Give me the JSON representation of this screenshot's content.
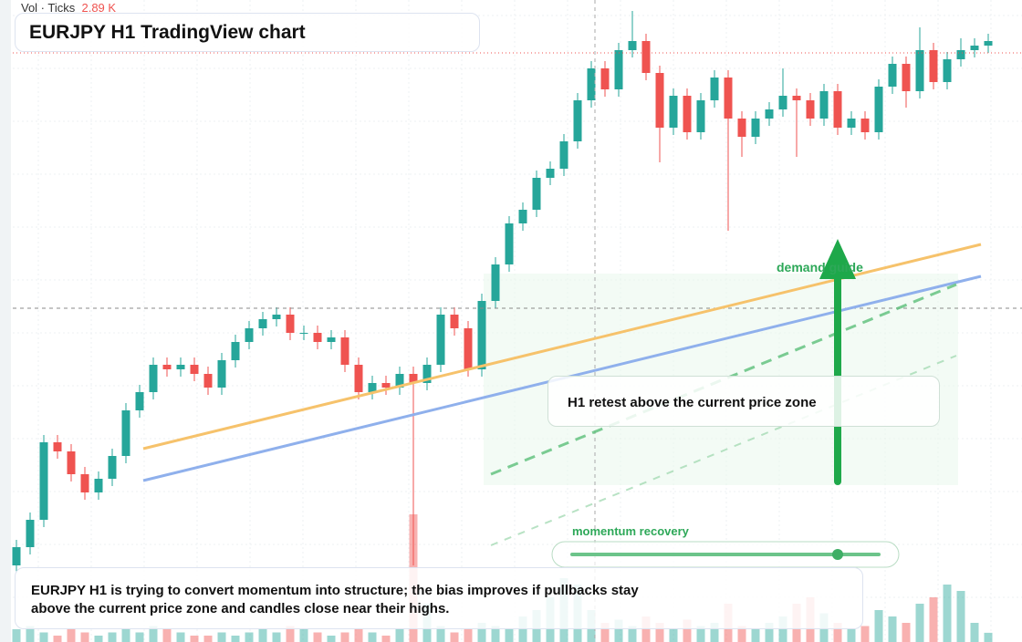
{
  "chart_data": {
    "type": "candlestick",
    "title": "EURJPY H1 TradingView chart",
    "legend_prefix": "Vol · Ticks",
    "volume_label": "2.89 K",
    "annotations": {
      "demand": "demand guide",
      "retest": "H1 retest above the current price zone",
      "momentum": "momentum recovery",
      "summary": "EURJPY H1 is trying to convert momentum into structure; the bias improves if pullbacks stay above the current price zone and candles close near their highs."
    },
    "ylim": [
      0,
      704
    ],
    "vlim": [
      0,
      40
    ],
    "up_color": "#26a69a",
    "down_color": "#ef5350",
    "open": [
      84,
      104,
      134,
      219,
      209,
      184,
      164,
      179,
      204,
      254,
      274,
      304,
      299,
      304,
      294,
      279,
      309,
      329,
      344,
      354,
      359,
      339,
      339,
      329,
      334,
      304,
      274,
      284,
      279,
      294,
      284,
      304,
      359,
      344,
      299,
      374,
      414,
      459,
      474,
      509,
      519,
      549,
      594,
      629,
      606,
      649,
      659,
      624,
      564,
      599,
      559,
      594,
      619,
      574,
      554,
      574,
      584,
      599,
      594,
      574,
      604,
      564,
      574,
      559,
      609,
      634,
      604,
      649,
      614,
      639,
      649,
      654
    ],
    "high": [
      112,
      142,
      227,
      227,
      217,
      192,
      187,
      212,
      262,
      282,
      312,
      312,
      312,
      312,
      302,
      317,
      337,
      352,
      362,
      367,
      367,
      347,
      347,
      342,
      342,
      312,
      292,
      292,
      302,
      302,
      312,
      367,
      367,
      352,
      382,
      422,
      467,
      482,
      517,
      527,
      557,
      602,
      637,
      637,
      657,
      692,
      667,
      632,
      607,
      607,
      602,
      627,
      627,
      582,
      582,
      592,
      629,
      607,
      602,
      612,
      612,
      582,
      582,
      617,
      642,
      642,
      674,
      657,
      647,
      662,
      662,
      667
    ],
    "low": [
      76,
      96,
      126,
      201,
      176,
      156,
      156,
      171,
      196,
      246,
      266,
      291,
      291,
      286,
      271,
      271,
      301,
      321,
      336,
      346,
      331,
      331,
      321,
      321,
      296,
      266,
      266,
      271,
      271,
      84,
      276,
      296,
      336,
      291,
      291,
      366,
      406,
      451,
      466,
      501,
      511,
      541,
      586,
      598,
      598,
      641,
      616,
      526,
      556,
      551,
      551,
      586,
      451,
      532,
      546,
      566,
      576,
      532,
      566,
      566,
      556,
      556,
      551,
      551,
      601,
      586,
      596,
      606,
      606,
      631,
      641,
      646
    ],
    "close": [
      104,
      134,
      219,
      209,
      184,
      164,
      179,
      204,
      254,
      274,
      304,
      299,
      304,
      294,
      279,
      309,
      329,
      344,
      354,
      359,
      339,
      339,
      329,
      334,
      304,
      274,
      284,
      279,
      294,
      284,
      304,
      359,
      344,
      299,
      374,
      414,
      459,
      474,
      509,
      519,
      549,
      594,
      629,
      606,
      649,
      659,
      624,
      564,
      599,
      559,
      594,
      619,
      574,
      554,
      574,
      584,
      599,
      594,
      574,
      604,
      564,
      574,
      559,
      609,
      634,
      604,
      649,
      614,
      639,
      649,
      654,
      659
    ],
    "volume": [
      4,
      5,
      3,
      2,
      4,
      3,
      2,
      3,
      4,
      3,
      5,
      4,
      3,
      2,
      2,
      3,
      2,
      3,
      4,
      3,
      5,
      4,
      3,
      2,
      3,
      4,
      3,
      2,
      4,
      40,
      12,
      5,
      3,
      4,
      6,
      5,
      4,
      8,
      10,
      14,
      20,
      18,
      10,
      6,
      7,
      5,
      8,
      6,
      4,
      7,
      5,
      6,
      12,
      5,
      4,
      6,
      8,
      12,
      14,
      9,
      6,
      4,
      5,
      10,
      8,
      6,
      12,
      14,
      18,
      16,
      6,
      2.89
    ]
  }
}
